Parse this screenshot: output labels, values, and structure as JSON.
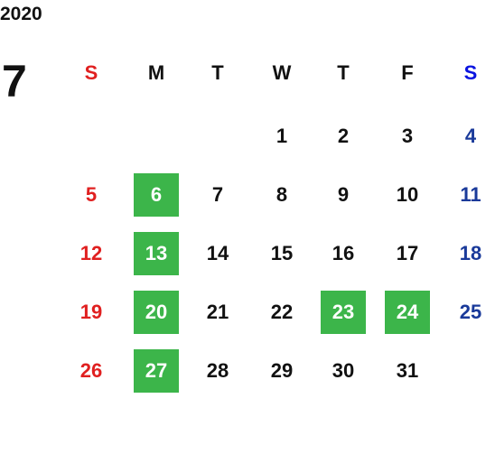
{
  "year": "2020",
  "month": "7",
  "weekdays": [
    "S",
    "M",
    "T",
    "W",
    "T",
    "F",
    "S"
  ],
  "weeks": [
    [
      null,
      null,
      null,
      1,
      2,
      3,
      4
    ],
    [
      5,
      6,
      7,
      8,
      9,
      10,
      11
    ],
    [
      12,
      13,
      14,
      15,
      16,
      17,
      18
    ],
    [
      19,
      20,
      21,
      22,
      23,
      24,
      25
    ],
    [
      26,
      27,
      28,
      29,
      30,
      31,
      null
    ]
  ],
  "highlighted": [
    6,
    13,
    20,
    23,
    24,
    27
  ],
  "highlight_color": "#3cb54a"
}
